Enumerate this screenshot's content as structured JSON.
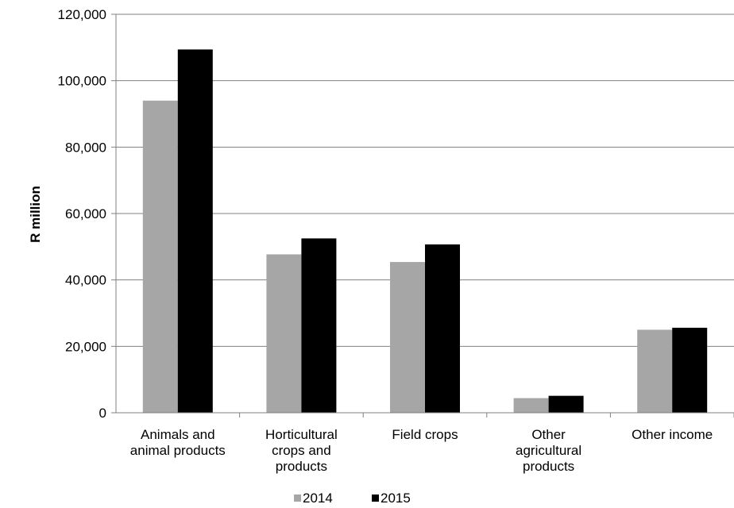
{
  "chart_data": {
    "type": "bar",
    "categories": [
      [
        "Animals and",
        "animal products"
      ],
      [
        "Horticultural",
        "crops and",
        "products"
      ],
      [
        "Field crops"
      ],
      [
        "Other",
        "agricultural",
        "products"
      ],
      [
        "Other income"
      ]
    ],
    "series": [
      {
        "name": "2014",
        "color": "#a6a6a6",
        "values": [
          94000,
          47700,
          45400,
          4400,
          25000
        ]
      },
      {
        "name": "2015",
        "color": "#000000",
        "values": [
          109400,
          52500,
          50700,
          5100,
          25600
        ]
      }
    ],
    "ylabel": "R million",
    "ylim": [
      0,
      120000
    ],
    "yticks": [
      "0",
      "20,000",
      "40,000",
      "60,000",
      "80,000",
      "100,000",
      "120,000"
    ],
    "grid": true,
    "legend_position": "bottom"
  }
}
